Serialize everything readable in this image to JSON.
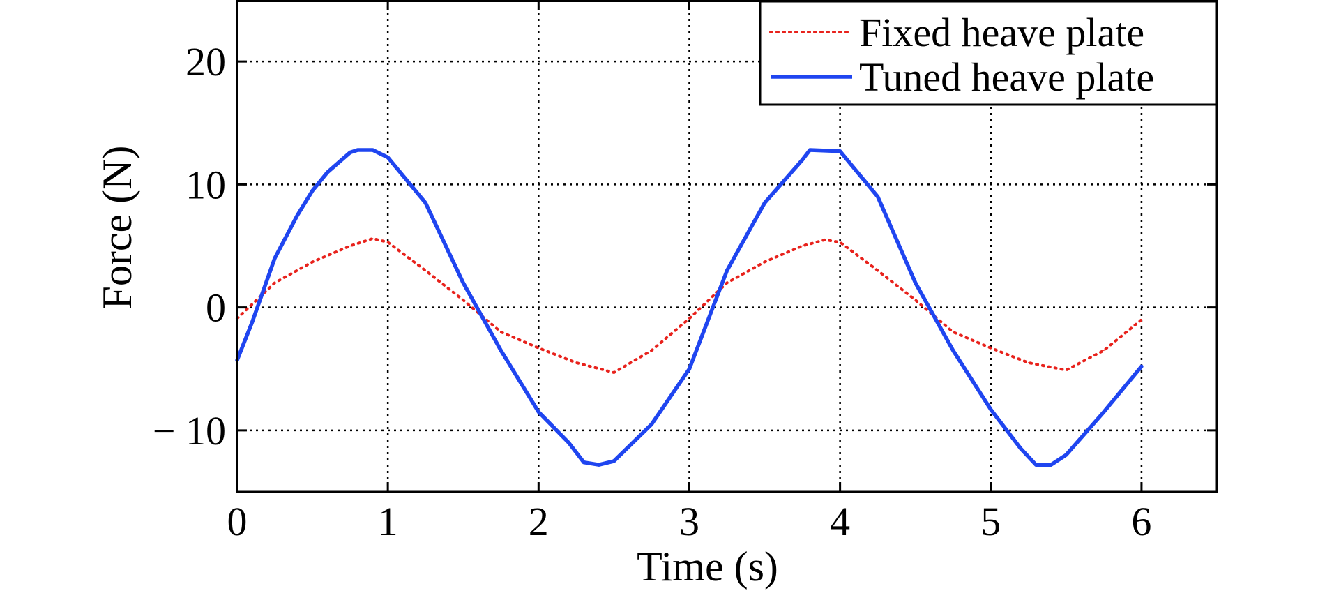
{
  "chart_data": {
    "type": "line",
    "title": "",
    "xlabel": "Time (s)",
    "ylabel": "Force (N)",
    "xlim": [
      0,
      6.5
    ],
    "ylim": [
      -15,
      25
    ],
    "xticks": [
      0,
      1,
      2,
      3,
      4,
      5,
      6
    ],
    "xtick_labels": [
      "0",
      "1",
      "2",
      "3",
      "4",
      "5",
      "6"
    ],
    "yticks": [
      -10,
      0,
      10,
      20
    ],
    "ytick_labels": [
      "− 10",
      "0",
      "10",
      "20"
    ],
    "grid": true,
    "legend_position": "top-right",
    "series": [
      {
        "name": "Fixed heave plate",
        "color": "#e8221c",
        "style": "dotted",
        "x": [
          0,
          0.25,
          0.5,
          0.75,
          0.9,
          1.0,
          1.25,
          1.5,
          1.75,
          2.0,
          2.25,
          2.5,
          2.75,
          3.0,
          3.25,
          3.5,
          3.75,
          3.9,
          4.0,
          4.25,
          4.5,
          4.75,
          5.0,
          5.25,
          5.5,
          5.75,
          6.0
        ],
        "y": [
          -0.9,
          2.0,
          3.7,
          5.0,
          5.6,
          5.3,
          3.0,
          0.6,
          -2.0,
          -3.3,
          -4.5,
          -5.3,
          -3.5,
          -0.9,
          2.0,
          3.7,
          5.0,
          5.5,
          5.3,
          3.0,
          0.6,
          -2.0,
          -3.3,
          -4.5,
          -5.1,
          -3.5,
          -1.0
        ]
      },
      {
        "name": "Tuned heave plate",
        "color": "#1f45f0",
        "style": "solid",
        "x": [
          0,
          0.1,
          0.25,
          0.4,
          0.5,
          0.6,
          0.75,
          0.8,
          0.9,
          1.0,
          1.25,
          1.5,
          1.75,
          2.0,
          2.2,
          2.3,
          2.4,
          2.5,
          2.75,
          3.0,
          3.25,
          3.5,
          3.75,
          3.8,
          4.0,
          4.25,
          4.5,
          4.75,
          5.0,
          5.2,
          5.3,
          5.4,
          5.5,
          5.75,
          6.0
        ],
        "y": [
          -4.3,
          -1.2,
          4.0,
          7.5,
          9.5,
          11.0,
          12.6,
          12.8,
          12.8,
          12.2,
          8.5,
          2.0,
          -3.5,
          -8.5,
          -11.0,
          -12.6,
          -12.8,
          -12.5,
          -9.5,
          -5.0,
          3.0,
          8.5,
          12.0,
          12.8,
          12.7,
          9.0,
          2.0,
          -3.5,
          -8.3,
          -11.5,
          -12.8,
          -12.8,
          -12.0,
          -8.5,
          -4.8
        ]
      }
    ]
  }
}
